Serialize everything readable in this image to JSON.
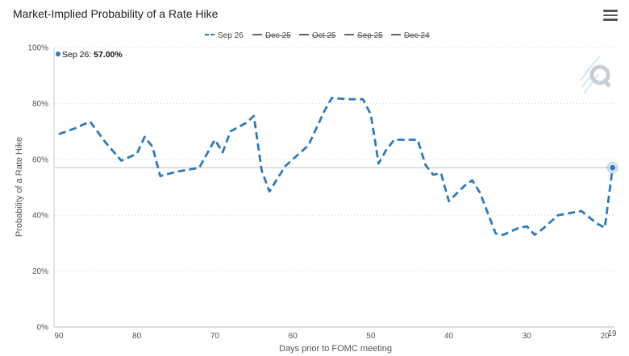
{
  "chart": {
    "title": "Market-Implied Probability of a Rate Hike",
    "menu_icon": "hamburger-menu-icon",
    "watermark_icon": "q-logo-watermark"
  },
  "tooltip": {
    "series": "Sep 26",
    "separator": ": ",
    "value": "57.00%"
  },
  "chart_data": {
    "type": "line",
    "title": "Market-Implied Probability of a Rate Hike",
    "xlabel": "Days prior to FOMC meeting",
    "ylabel": "Probability of a Rate Hike",
    "xlim": [
      90,
      20
    ],
    "ylim": [
      0,
      100
    ],
    "x_ticks": [
      "90",
      "80",
      "70",
      "60",
      "50",
      "40",
      "30",
      "20"
    ],
    "y_ticks": [
      "0%",
      "20%",
      "40%",
      "60%",
      "80%",
      "100%"
    ],
    "x_extra_label": "19",
    "reference_line": 57,
    "grid": "horizontal-dotted",
    "legend_position": "top-center",
    "legend": [
      {
        "name": "Sep 26",
        "visible": true
      },
      {
        "name": "Dec 25",
        "visible": false
      },
      {
        "name": "Oct 25",
        "visible": false
      },
      {
        "name": "Sep 25",
        "visible": false
      },
      {
        "name": "Dec 24",
        "visible": false
      }
    ],
    "series": [
      {
        "name": "Sep 26",
        "color": "#2f7ab8",
        "dash": "dashed",
        "x": [
          90,
          88,
          86,
          84,
          82,
          80,
          79,
          78,
          77,
          75,
          72,
          70,
          69,
          68,
          66,
          65,
          64,
          63,
          62,
          61,
          60,
          58,
          57,
          56,
          55,
          53,
          51,
          50,
          49,
          48,
          47,
          46,
          44,
          43,
          42,
          41,
          40,
          38,
          37,
          36,
          34,
          33,
          31,
          30,
          29,
          28,
          26,
          23,
          21,
          20,
          19
        ],
        "y": [
          69,
          71,
          73.5,
          66,
          59.5,
          62,
          68,
          64.5,
          54,
          55.5,
          57,
          67,
          62.5,
          70,
          73,
          75.5,
          56,
          48.5,
          53,
          57.5,
          60,
          65,
          71,
          77,
          82,
          81.5,
          81.5,
          76,
          58.5,
          63.5,
          67,
          67,
          67,
          58,
          54.5,
          55,
          45,
          50.5,
          52.5,
          48,
          33.5,
          33,
          35.5,
          36,
          33,
          35,
          40,
          41.5,
          37,
          35.5,
          57
        ]
      }
    ],
    "highlight_point": {
      "x": 19,
      "y": 57
    }
  }
}
